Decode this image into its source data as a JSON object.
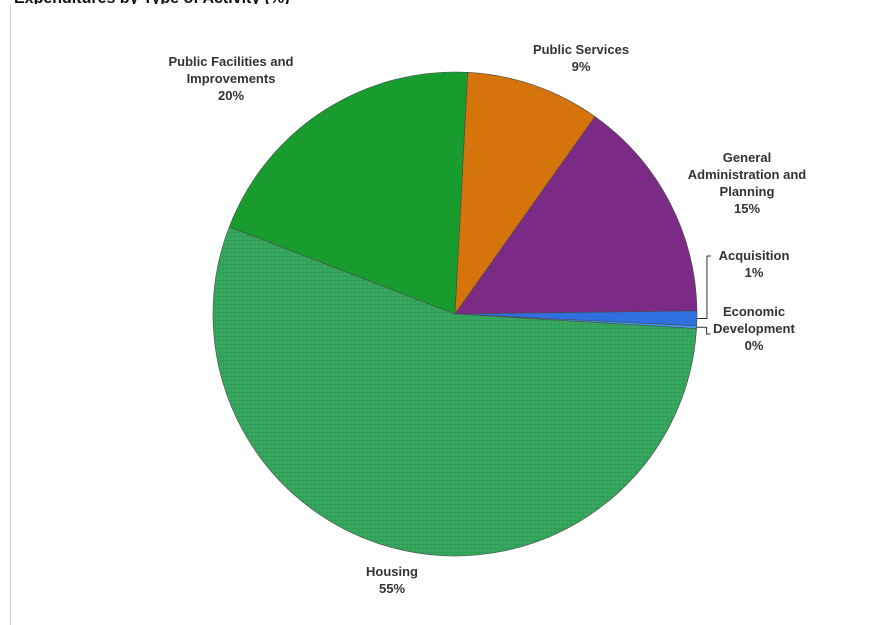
{
  "chart_data": {
    "type": "pie",
    "title": "Expenditures by Type of Activity (%)",
    "start_angle_deg": -87,
    "slices": [
      {
        "label_lines": [
          "Public Services"
        ],
        "value": 9,
        "value_label": "9%",
        "color": "#d4740b"
      },
      {
        "label_lines": [
          "General",
          "Administration and",
          "Planning"
        ],
        "value": 15,
        "value_label": "15%",
        "color": "#7b2b85"
      },
      {
        "label_lines": [
          "Acquisition"
        ],
        "value": 1,
        "value_label": "1%",
        "color": "#2f6fe0"
      },
      {
        "label_lines": [
          "Economic",
          "Development"
        ],
        "value": 0,
        "value_label": "0%",
        "color": "#3aa0ff"
      },
      {
        "label_lines": [
          "Housing"
        ],
        "value": 55,
        "value_label": "55%",
        "color": "#30a860",
        "pattern": "grid"
      },
      {
        "label_lines": [
          "Public Facilities and",
          "Improvements"
        ],
        "value": 20,
        "value_label": "20%",
        "color": "#179c2d"
      }
    ]
  }
}
